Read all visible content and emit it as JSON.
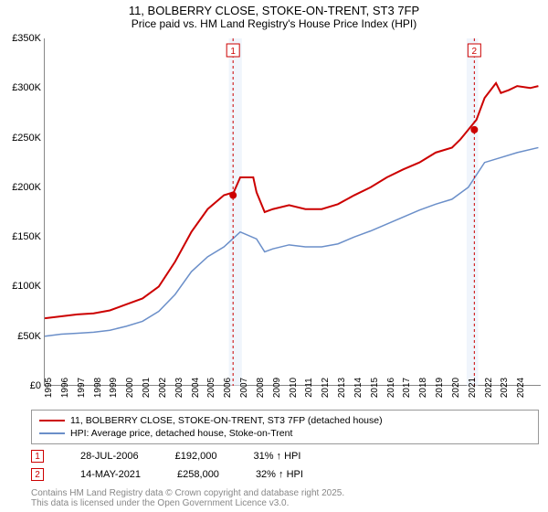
{
  "title": "11, BOLBERRY CLOSE, STOKE-ON-TRENT, ST3 7FP",
  "subtitle": "Price paid vs. HM Land Registry's House Price Index (HPI)",
  "chart": {
    "type": "line",
    "xlim": [
      1995,
      2025.5
    ],
    "ylim": [
      0,
      350000
    ],
    "ytick_step": 50000,
    "yticks": [
      "£0",
      "£50K",
      "£100K",
      "£150K",
      "£200K",
      "£250K",
      "£300K",
      "£350K"
    ],
    "xticks": [
      1995,
      1996,
      1997,
      1998,
      1999,
      2000,
      2001,
      2002,
      2003,
      2004,
      2005,
      2006,
      2007,
      2008,
      2009,
      2010,
      2011,
      2012,
      2013,
      2014,
      2015,
      2016,
      2017,
      2018,
      2019,
      2020,
      2021,
      2022,
      2023,
      2024
    ],
    "background_color": "#ffffff",
    "shade_color": "#e6eefa",
    "shade_ranges": [
      [
        2006.3,
        2007.1
      ],
      [
        2020.9,
        2021.6
      ]
    ],
    "series": [
      {
        "name": "property",
        "color": "#cc0000",
        "width": 2,
        "data": [
          [
            1995,
            68
          ],
          [
            1996,
            70
          ],
          [
            1997,
            72
          ],
          [
            1998,
            73
          ],
          [
            1999,
            76
          ],
          [
            2000,
            82
          ],
          [
            2001,
            88
          ],
          [
            2002,
            100
          ],
          [
            2003,
            125
          ],
          [
            2004,
            155
          ],
          [
            2005,
            178
          ],
          [
            2006,
            192
          ],
          [
            2006.6,
            195
          ],
          [
            2007,
            210
          ],
          [
            2007.8,
            210
          ],
          [
            2008,
            195
          ],
          [
            2008.5,
            175
          ],
          [
            2009,
            178
          ],
          [
            2010,
            182
          ],
          [
            2011,
            178
          ],
          [
            2012,
            178
          ],
          [
            2013,
            183
          ],
          [
            2014,
            192
          ],
          [
            2015,
            200
          ],
          [
            2016,
            210
          ],
          [
            2017,
            218
          ],
          [
            2018,
            225
          ],
          [
            2019,
            235
          ],
          [
            2020,
            240
          ],
          [
            2020.5,
            248
          ],
          [
            2021,
            258
          ],
          [
            2021.5,
            268
          ],
          [
            2022,
            290
          ],
          [
            2022.7,
            305
          ],
          [
            2023,
            295
          ],
          [
            2023.5,
            298
          ],
          [
            2024,
            302
          ],
          [
            2024.8,
            300
          ],
          [
            2025.3,
            302
          ]
        ]
      },
      {
        "name": "hpi",
        "color": "#6b8fc9",
        "width": 1.5,
        "data": [
          [
            1995,
            50
          ],
          [
            1996,
            52
          ],
          [
            1997,
            53
          ],
          [
            1998,
            54
          ],
          [
            1999,
            56
          ],
          [
            2000,
            60
          ],
          [
            2001,
            65
          ],
          [
            2002,
            75
          ],
          [
            2003,
            92
          ],
          [
            2004,
            115
          ],
          [
            2005,
            130
          ],
          [
            2006,
            140
          ],
          [
            2007,
            155
          ],
          [
            2008,
            148
          ],
          [
            2008.5,
            135
          ],
          [
            2009,
            138
          ],
          [
            2010,
            142
          ],
          [
            2011,
            140
          ],
          [
            2012,
            140
          ],
          [
            2013,
            143
          ],
          [
            2014,
            150
          ],
          [
            2015,
            156
          ],
          [
            2016,
            163
          ],
          [
            2017,
            170
          ],
          [
            2018,
            177
          ],
          [
            2019,
            183
          ],
          [
            2020,
            188
          ],
          [
            2021,
            200
          ],
          [
            2022,
            225
          ],
          [
            2023,
            230
          ],
          [
            2024,
            235
          ],
          [
            2025.3,
            240
          ]
        ]
      }
    ],
    "markers": [
      {
        "n": 1,
        "x": 2006.56,
        "y": 192,
        "color": "#cc0000"
      },
      {
        "n": 2,
        "x": 2021.37,
        "y": 258,
        "color": "#cc0000"
      }
    ]
  },
  "legend": {
    "series1": {
      "color": "#cc0000",
      "label": "11, BOLBERRY CLOSE, STOKE-ON-TRENT, ST3 7FP (detached house)"
    },
    "series2": {
      "color": "#6b8fc9",
      "label": "HPI: Average price, detached house, Stoke-on-Trent"
    }
  },
  "sales": [
    {
      "n": 1,
      "date": "28-JUL-2006",
      "price": "£192,000",
      "delta": "31% ↑ HPI",
      "color": "#cc0000"
    },
    {
      "n": 2,
      "date": "14-MAY-2021",
      "price": "£258,000",
      "delta": "32% ↑ HPI",
      "color": "#cc0000"
    }
  ],
  "footer1": "Contains HM Land Registry data © Crown copyright and database right 2025.",
  "footer2": "This data is licensed under the Open Government Licence v3.0."
}
